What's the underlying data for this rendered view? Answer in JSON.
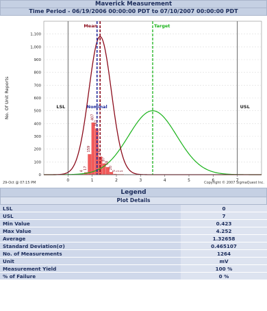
{
  "header": {
    "title": "Maverick Measurement",
    "period": "Time Period - 06/19/2006 00:00:00 PDT to 07/10/2007 00:00:00 PDT"
  },
  "chart_data": {
    "type": "bar",
    "ylabel": "No. Of Unit Reports",
    "xlim": [
      -1,
      8
    ],
    "ylim": [
      0,
      1200
    ],
    "x_ticks": [
      0,
      1,
      2,
      3,
      4,
      5,
      6,
      7
    ],
    "y_ticks": [
      0,
      100,
      200,
      300,
      400,
      500,
      600,
      700,
      800,
      900,
      1000,
      1100
    ],
    "histogram": [
      {
        "x": 0.6,
        "value": 4,
        "label": "4"
      },
      {
        "x": 0.75,
        "value": 17,
        "label": "17"
      },
      {
        "x": 0.9,
        "value": 159,
        "label": "159"
      },
      {
        "x": 1.05,
        "value": 407,
        "label": "407"
      },
      {
        "x": 1.2,
        "value": 361,
        "label": "361"
      },
      {
        "x": 1.35,
        "value": 141,
        "label": "141"
      },
      {
        "x": 1.5,
        "value": 87,
        "label": "87"
      },
      {
        "x": 1.65,
        "value": 58,
        "label": "58"
      },
      {
        "x": 1.8,
        "value": 20,
        "label": "20"
      },
      {
        "x": 1.95,
        "value": 5,
        "label": "5"
      },
      {
        "x": 2.1,
        "value": 1,
        "label": "1"
      },
      {
        "x": 2.25,
        "value": 1,
        "label": "1"
      }
    ],
    "lines": {
      "lsl": {
        "label": "LSL",
        "x": 0
      },
      "usl": {
        "label": "USL",
        "x": 7
      },
      "mean": {
        "label": "Mean",
        "x": 1.32658
      },
      "nominal": {
        "label": "Nominal",
        "x": 1.2
      },
      "target": {
        "label": "Target",
        "x": 3.5
      }
    },
    "curves": {
      "measured": {
        "mean": 1.32658,
        "sd": 0.465107,
        "peak": 1080,
        "color": "#8b0a1a"
      },
      "target": {
        "mean": 3.5,
        "sd": 1.0,
        "peak": 500,
        "color": "#19b219"
      }
    },
    "colors": {
      "bar": "#f25a5a",
      "mean": "#8b0a1a",
      "nominal": "#1f2a9c",
      "target": "#19b219"
    }
  },
  "footer": {
    "left": "29-Oct @ 07:15 PM",
    "right": "Copyright © 2007 SigmaQuest Inc."
  },
  "legend": {
    "title": "Legend",
    "subtitle": "Plot Details",
    "rows": [
      {
        "key": "LSL",
        "value": "0"
      },
      {
        "key": "USL",
        "value": "7"
      },
      {
        "key": "Min Value",
        "value": "0.423"
      },
      {
        "key": "Max Value",
        "value": "4.252"
      },
      {
        "key": "Average",
        "value": "1.32658"
      },
      {
        "key": "Standard Deviation(σ)",
        "value": "0.465107"
      },
      {
        "key": "No. of Measurements",
        "value": "1264"
      },
      {
        "key": "Unit",
        "value": "mV"
      },
      {
        "key": "Measurement Yield",
        "value": "100 %"
      },
      {
        "key": "% of Failure",
        "value": "0 %"
      }
    ]
  }
}
